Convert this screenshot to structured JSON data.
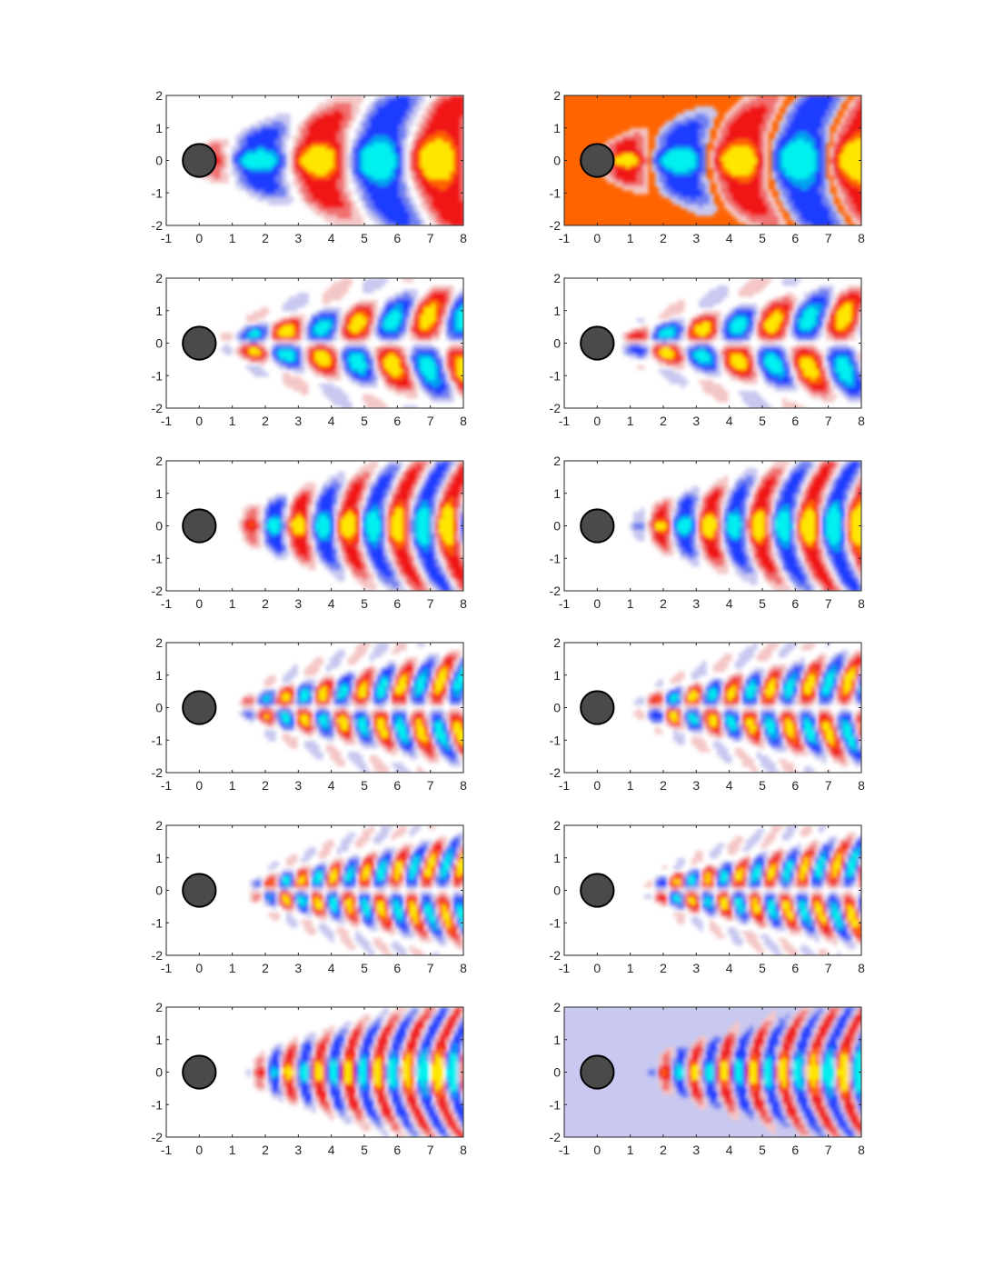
{
  "figure": {
    "rows": 6,
    "cols": 2,
    "background": "#ffffff"
  },
  "colors": {
    "deep_blue": "#0000dd",
    "blue": "#1e3cff",
    "cyan": "#00f0f0",
    "white": "#ffffff",
    "pale_blue": "#c8c8f0",
    "red": "#f01414",
    "orange": "#ff6400",
    "yellow": "#ffe600",
    "cylinder_fill": "#4a4a4a",
    "cylinder_edge": "#000000",
    "axis": "#262626"
  },
  "chart_data": [
    {
      "type": "heatmap",
      "panel": "r1c1",
      "xlim": [
        -1,
        8
      ],
      "ylim": [
        -2,
        2
      ],
      "x_ticks": [
        "-1",
        "0",
        "1",
        "2",
        "3",
        "4",
        "5",
        "6",
        "7",
        "8"
      ],
      "y_ticks": [
        "2",
        "1",
        "0",
        "-1",
        "-2"
      ],
      "background": "#ffffff",
      "symmetry": "symmetric",
      "wavelength": 3.6,
      "x_start": -0.3,
      "amplitude": 1.0,
      "phase": 0.0,
      "obstacle": {
        "shape": "circle",
        "cx": 0,
        "cy": 0,
        "r": 0.5
      }
    },
    {
      "type": "heatmap",
      "panel": "r1c2",
      "xlim": [
        -1,
        8
      ],
      "ylim": [
        -2,
        2
      ],
      "x_ticks": [
        "-1",
        "0",
        "1",
        "2",
        "3",
        "4",
        "5",
        "6",
        "7",
        "8"
      ],
      "y_ticks": [
        "2",
        "1",
        "0",
        "-1",
        "-2"
      ],
      "background": "#ff6400",
      "symmetry": "symmetric",
      "wavelength": 3.6,
      "x_start": -0.3,
      "amplitude": 1.0,
      "phase": 1.2,
      "obstacle": {
        "shape": "circle",
        "cx": 0,
        "cy": 0,
        "r": 0.5
      }
    },
    {
      "type": "heatmap",
      "panel": "r2c1",
      "xlim": [
        -1,
        8
      ],
      "ylim": [
        -2,
        2
      ],
      "x_ticks": [
        "-1",
        "0",
        "1",
        "2",
        "3",
        "4",
        "5",
        "6",
        "7",
        "8"
      ],
      "y_ticks": [
        "2",
        "1",
        "0",
        "-1",
        "-2"
      ],
      "background": "#ffffff",
      "symmetry": "antisymmetric",
      "wavelength": 2.1,
      "x_start": 0.5,
      "amplitude": 1.0,
      "phase": 0.0,
      "obstacle": {
        "shape": "circle",
        "cx": 0,
        "cy": 0,
        "r": 0.5
      }
    },
    {
      "type": "heatmap",
      "panel": "r2c2",
      "xlim": [
        -1,
        8
      ],
      "ylim": [
        -2,
        2
      ],
      "x_ticks": [
        "-1",
        "0",
        "1",
        "2",
        "3",
        "4",
        "5",
        "6",
        "7",
        "8"
      ],
      "y_ticks": [
        "2",
        "1",
        "0",
        "-1",
        "-2"
      ],
      "background": "#ffffff",
      "symmetry": "antisymmetric",
      "wavelength": 2.1,
      "x_start": 0.5,
      "amplitude": 1.0,
      "phase": 1.6,
      "obstacle": {
        "shape": "circle",
        "cx": 0,
        "cy": 0,
        "r": 0.5
      }
    },
    {
      "type": "heatmap",
      "panel": "r3c1",
      "xlim": [
        -1,
        8
      ],
      "ylim": [
        -2,
        2
      ],
      "x_ticks": [
        "-1",
        "0",
        "1",
        "2",
        "3",
        "4",
        "5",
        "6",
        "7",
        "8"
      ],
      "y_ticks": [
        "2",
        "1",
        "0",
        "-1",
        "-2"
      ],
      "background": "#ffffff",
      "symmetry": "symmetric",
      "wavelength": 1.5,
      "x_start": 0.9,
      "amplitude": 1.0,
      "phase": 0.0,
      "obstacle": {
        "shape": "circle",
        "cx": 0,
        "cy": 0,
        "r": 0.5
      }
    },
    {
      "type": "heatmap",
      "panel": "r3c2",
      "xlim": [
        -1,
        8
      ],
      "ylim": [
        -2,
        2
      ],
      "x_ticks": [
        "-1",
        "0",
        "1",
        "2",
        "3",
        "4",
        "5",
        "6",
        "7",
        "8"
      ],
      "y_ticks": [
        "2",
        "1",
        "0",
        "-1",
        "-2"
      ],
      "background": "#ffffff",
      "symmetry": "symmetric",
      "wavelength": 1.5,
      "x_start": 0.9,
      "amplitude": 1.0,
      "phase": 1.6,
      "obstacle": {
        "shape": "circle",
        "cx": 0,
        "cy": 0,
        "r": 0.5
      }
    },
    {
      "type": "heatmap",
      "panel": "r4c1",
      "xlim": [
        -1,
        8
      ],
      "ylim": [
        -2,
        2
      ],
      "x_ticks": [
        "-1",
        "0",
        "1",
        "2",
        "3",
        "4",
        "5",
        "6",
        "7",
        "8"
      ],
      "y_ticks": [
        "2",
        "1",
        "0",
        "-1",
        "-2"
      ],
      "background": "#ffffff",
      "symmetry": "antisymmetric",
      "wavelength": 1.15,
      "x_start": 1.0,
      "amplitude": 1.0,
      "phase": 0.0,
      "obstacle": {
        "shape": "circle",
        "cx": 0,
        "cy": 0,
        "r": 0.5
      }
    },
    {
      "type": "heatmap",
      "panel": "r4c2",
      "xlim": [
        -1,
        8
      ],
      "ylim": [
        -2,
        2
      ],
      "x_ticks": [
        "-1",
        "0",
        "1",
        "2",
        "3",
        "4",
        "5",
        "6",
        "7",
        "8"
      ],
      "y_ticks": [
        "2",
        "1",
        "0",
        "-1",
        "-2"
      ],
      "background": "#ffffff",
      "symmetry": "antisymmetric",
      "wavelength": 1.15,
      "x_start": 1.0,
      "amplitude": 1.0,
      "phase": 1.6,
      "obstacle": {
        "shape": "circle",
        "cx": 0,
        "cy": 0,
        "r": 0.5
      }
    },
    {
      "type": "heatmap",
      "panel": "r5c1",
      "xlim": [
        -1,
        8
      ],
      "ylim": [
        -2,
        2
      ],
      "x_ticks": [
        "-1",
        "0",
        "1",
        "2",
        "3",
        "4",
        "5",
        "6",
        "7",
        "8"
      ],
      "y_ticks": [
        "2",
        "1",
        "0",
        "-1",
        "-2"
      ],
      "background": "#ffffff",
      "symmetry": "antisymmetric",
      "wavelength": 0.95,
      "x_start": 1.3,
      "amplitude": 1.0,
      "phase": 0.0,
      "obstacle": {
        "shape": "circle",
        "cx": 0,
        "cy": 0,
        "r": 0.5
      }
    },
    {
      "type": "heatmap",
      "panel": "r5c2",
      "xlim": [
        -1,
        8
      ],
      "ylim": [
        -2,
        2
      ],
      "x_ticks": [
        "-1",
        "0",
        "1",
        "2",
        "3",
        "4",
        "5",
        "6",
        "7",
        "8"
      ],
      "y_ticks": [
        "2",
        "1",
        "0",
        "-1",
        "-2"
      ],
      "background": "#ffffff",
      "symmetry": "antisymmetric",
      "wavelength": 0.95,
      "x_start": 1.3,
      "amplitude": 1.0,
      "phase": 1.6,
      "obstacle": {
        "shape": "circle",
        "cx": 0,
        "cy": 0,
        "r": 0.5
      }
    },
    {
      "type": "heatmap",
      "panel": "r6c1",
      "xlim": [
        -1,
        8
      ],
      "ylim": [
        -2,
        2
      ],
      "x_ticks": [
        "-1",
        "0",
        "1",
        "2",
        "3",
        "4",
        "5",
        "6",
        "7",
        "8"
      ],
      "y_ticks": [
        "2",
        "1",
        "0",
        "-1",
        "-2"
      ],
      "background": "#ffffff",
      "symmetry": "symmetric",
      "wavelength": 0.9,
      "x_start": 1.3,
      "amplitude": 1.0,
      "phase": 0.0,
      "obstacle": {
        "shape": "circle",
        "cx": 0,
        "cy": 0,
        "r": 0.5
      }
    },
    {
      "type": "heatmap",
      "panel": "r6c2",
      "xlim": [
        -1,
        8
      ],
      "ylim": [
        -2,
        2
      ],
      "x_ticks": [
        "-1",
        "0",
        "1",
        "2",
        "3",
        "4",
        "5",
        "6",
        "7",
        "8"
      ],
      "y_ticks": [
        "2",
        "1",
        "0",
        "-1",
        "-2"
      ],
      "background": "#c8c8f0",
      "symmetry": "symmetric",
      "wavelength": 0.9,
      "x_start": 1.3,
      "amplitude": 1.0,
      "phase": 1.6,
      "obstacle": {
        "shape": "circle",
        "cx": 0,
        "cy": 0,
        "r": 0.5
      }
    }
  ]
}
